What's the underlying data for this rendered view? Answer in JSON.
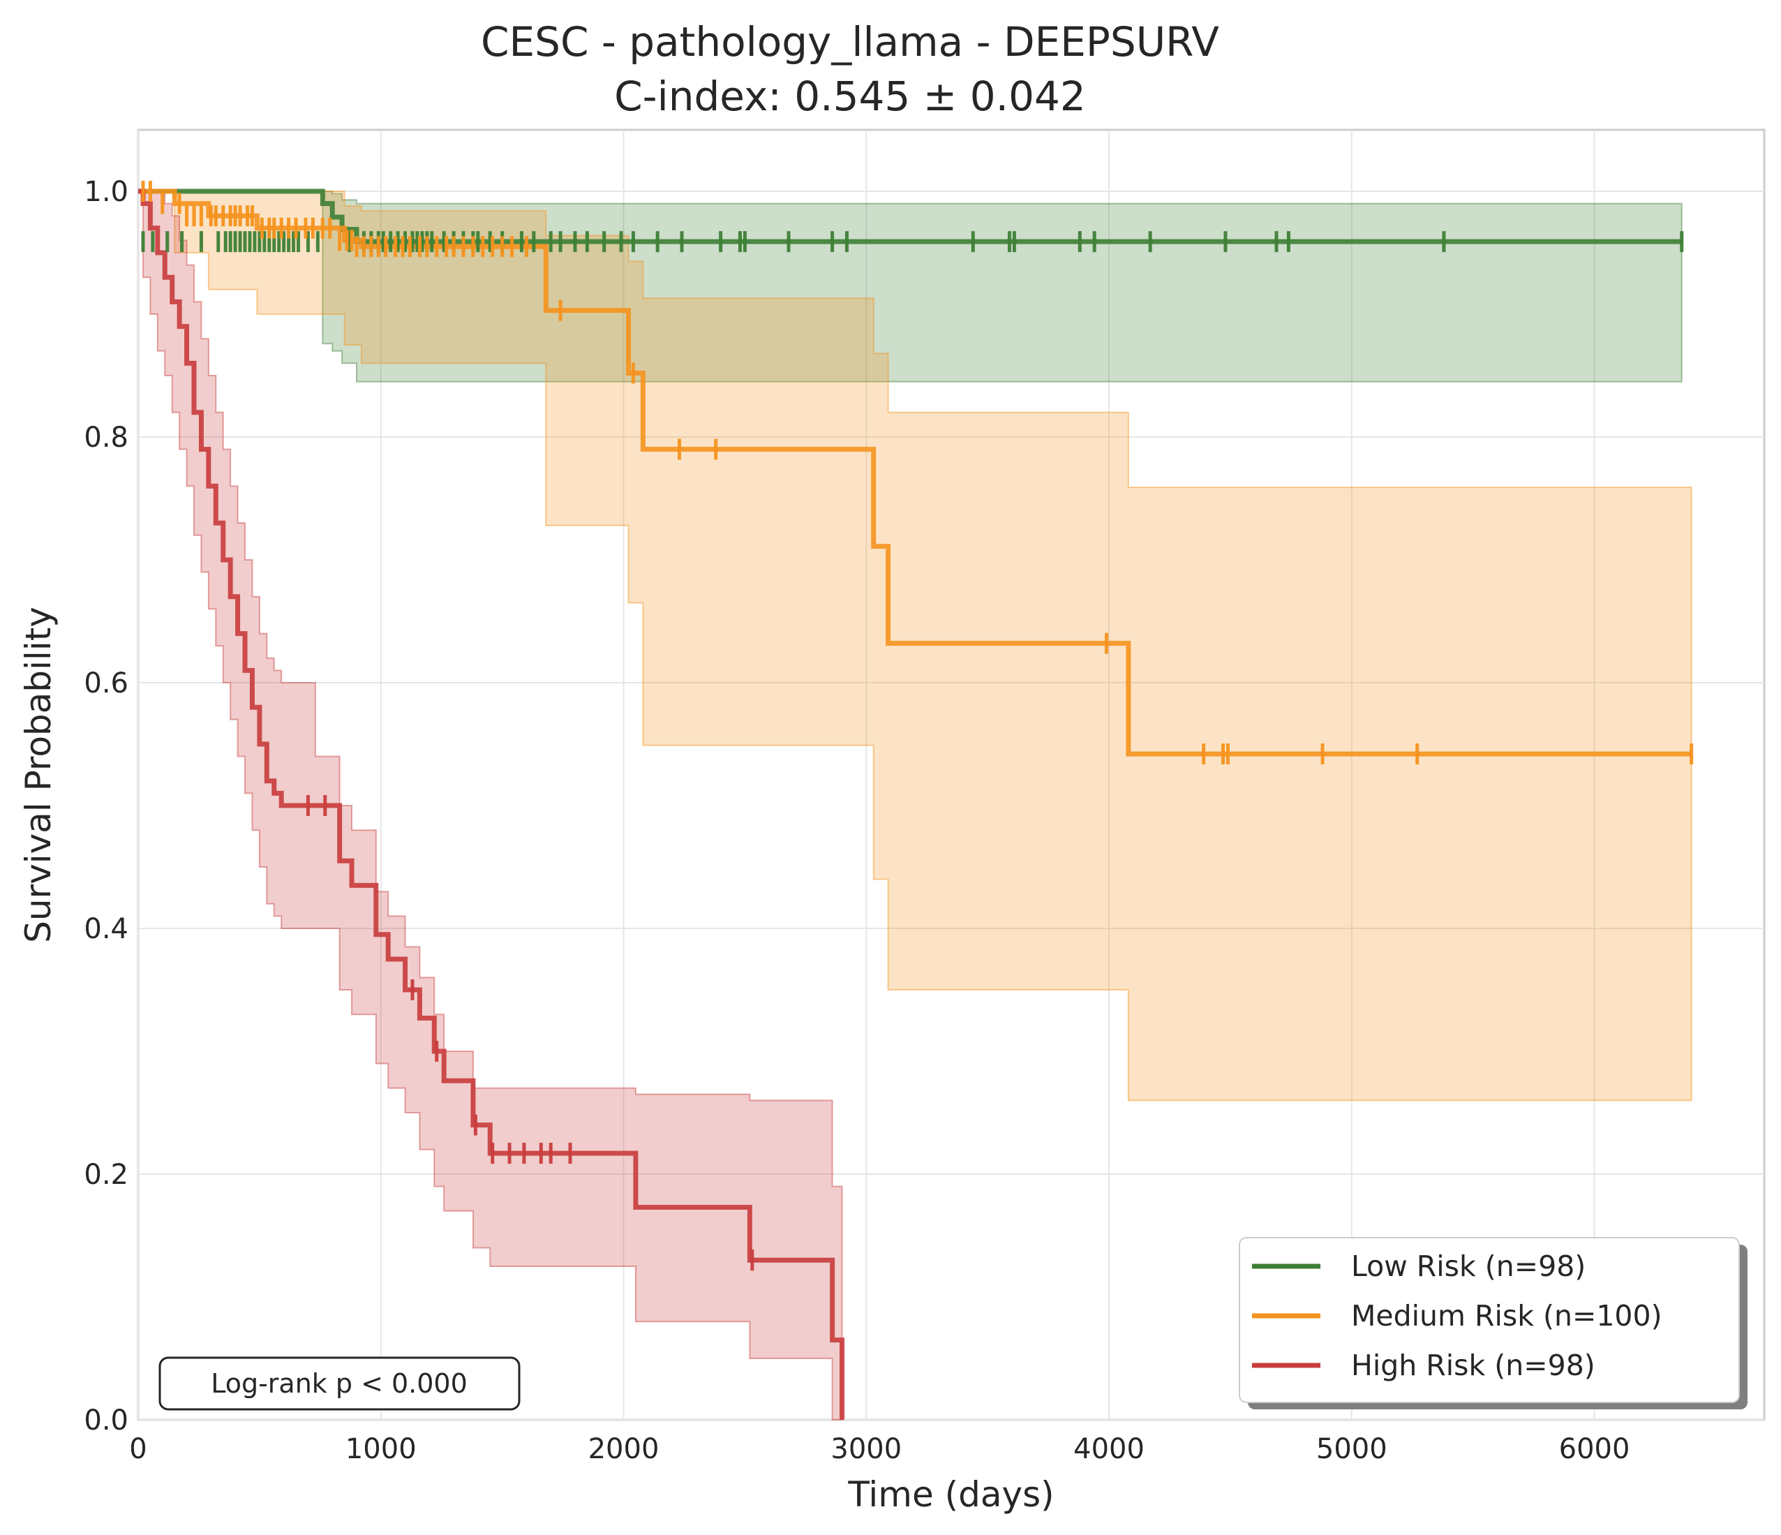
{
  "chart_data": {
    "type": "line",
    "title": "CESC - pathology_llama - DEEPSURV",
    "subtitle": "C-index: 0.545 ± 0.042",
    "xlabel": "Time (days)",
    "ylabel": "Survival Probability",
    "xlim": [
      0,
      6700
    ],
    "ylim": [
      0,
      1.05
    ],
    "x_ticks": [
      0,
      1000,
      2000,
      3000,
      4000,
      5000,
      6000
    ],
    "x_tick_labels": [
      "0",
      "1000",
      "2000",
      "3000",
      "4000",
      "5000",
      "6000"
    ],
    "y_ticks": [
      0,
      0.2,
      0.4,
      0.6,
      0.8,
      1.0
    ],
    "y_tick_labels": [
      "0.0",
      "0.2",
      "0.4",
      "0.6",
      "0.8",
      "1.0"
    ],
    "grid": true,
    "legend_position": "bottom-right",
    "annotation": "Log-rank p < 0.000",
    "series": [
      {
        "name": "Low Risk (n=98)",
        "color": "#3d7f35",
        "x": [
          0,
          760,
          800,
          840,
          900,
          6360
        ],
        "y": [
          1.0,
          0.99,
          0.979,
          0.969,
          0.959,
          0.959
        ],
        "ci_lower": [
          1.0,
          0.876,
          0.87,
          0.86,
          0.845,
          0.845
        ],
        "ci_upper": [
          1.0,
          1.0,
          0.998,
          0.993,
          0.99,
          0.99
        ],
        "censored_x": [
          20,
          60,
          120,
          180,
          260,
          330,
          360,
          380,
          400,
          420,
          440,
          460,
          480,
          500,
          520,
          540,
          560,
          580,
          600,
          620,
          640,
          660,
          700,
          740,
          870,
          930,
          960,
          990,
          1010,
          1040,
          1070,
          1100,
          1130,
          1150,
          1170,
          1190,
          1210,
          1260,
          1300,
          1340,
          1380,
          1400,
          1450,
          1500,
          1580,
          1630,
          1700,
          1740,
          1800,
          1850,
          1920,
          1990,
          2040,
          2140,
          2240,
          2400,
          2480,
          2500,
          2680,
          2860,
          2920,
          3440,
          3590,
          3610,
          3880,
          3940,
          4170,
          4480,
          4690,
          4740,
          5380,
          6360
        ],
        "censored_y": 0.959
      },
      {
        "name": "Medium Risk (n=100)",
        "color": "#f5921e",
        "x": [
          0,
          150,
          290,
          490,
          850,
          920,
          1680,
          2020,
          2080,
          3030,
          3090,
          4080,
          6400
        ],
        "y": [
          1.0,
          0.99,
          0.98,
          0.97,
          0.96,
          0.955,
          0.903,
          0.852,
          0.79,
          0.711,
          0.632,
          0.542,
          0.542
        ],
        "ci_lower": [
          1.0,
          0.95,
          0.92,
          0.9,
          0.875,
          0.86,
          0.728,
          0.665,
          0.549,
          0.44,
          0.35,
          0.26,
          0.26
        ],
        "ci_upper": [
          1.0,
          1.0,
          1.0,
          1.0,
          0.988,
          0.984,
          0.964,
          0.943,
          0.913,
          0.868,
          0.82,
          0.759,
          0.759
        ],
        "censored_x": [
          20,
          50,
          100,
          170,
          200,
          230,
          260,
          300,
          320,
          350,
          380,
          400,
          420,
          450,
          470,
          510,
          540,
          560,
          590,
          620,
          650,
          690,
          720,
          760,
          790,
          830,
          860,
          880,
          900,
          930,
          960,
          990,
          1020,
          1060,
          1090,
          1120,
          1160,
          1190,
          1230,
          1270,
          1300,
          1340,
          1380,
          1420,
          1460,
          1500,
          1540,
          1600,
          1740,
          2040,
          2230,
          2380,
          3990,
          4390,
          4470,
          4490,
          4880,
          5270,
          6400
        ],
        "censored_y": [
          1.0,
          1.0,
          0.99,
          0.99,
          0.98,
          0.98,
          0.98,
          0.98,
          0.98,
          0.98,
          0.98,
          0.98,
          0.98,
          0.98,
          0.98,
          0.97,
          0.97,
          0.97,
          0.97,
          0.97,
          0.97,
          0.97,
          0.97,
          0.97,
          0.97,
          0.96,
          0.96,
          0.96,
          0.955,
          0.955,
          0.955,
          0.955,
          0.955,
          0.955,
          0.955,
          0.955,
          0.955,
          0.955,
          0.955,
          0.955,
          0.955,
          0.955,
          0.955,
          0.955,
          0.955,
          0.955,
          0.955,
          0.955,
          0.903,
          0.852,
          0.79,
          0.79,
          0.632,
          0.542,
          0.542,
          0.542,
          0.542,
          0.542,
          0.542
        ]
      },
      {
        "name": "High Risk (n=98)",
        "color": "#c93c3c",
        "x": [
          0,
          20,
          50,
          80,
          110,
          140,
          170,
          200,
          230,
          260,
          290,
          320,
          350,
          380,
          410,
          440,
          470,
          500,
          530,
          560,
          590,
          620,
          650,
          730,
          830,
          880,
          980,
          1030,
          1100,
          1160,
          1220,
          1260,
          1380,
          1450,
          2050,
          2520,
          2860,
          2900
        ],
        "y": [
          1.0,
          0.99,
          0.97,
          0.95,
          0.93,
          0.91,
          0.89,
          0.86,
          0.82,
          0.79,
          0.76,
          0.73,
          0.7,
          0.67,
          0.64,
          0.61,
          0.58,
          0.55,
          0.52,
          0.51,
          0.5,
          0.5,
          0.5,
          0.5,
          0.455,
          0.435,
          0.395,
          0.375,
          0.35,
          0.327,
          0.3,
          0.276,
          0.24,
          0.217,
          0.173,
          0.13,
          0.065,
          0.0
        ],
        "ci_lower": [
          1.0,
          0.93,
          0.9,
          0.87,
          0.85,
          0.82,
          0.79,
          0.76,
          0.72,
          0.69,
          0.66,
          0.63,
          0.6,
          0.57,
          0.54,
          0.51,
          0.48,
          0.45,
          0.42,
          0.41,
          0.4,
          0.4,
          0.4,
          0.4,
          0.35,
          0.33,
          0.29,
          0.27,
          0.25,
          0.22,
          0.19,
          0.17,
          0.14,
          0.125,
          0.08,
          0.05,
          0.0,
          0.0
        ],
        "ci_upper": [
          1.0,
          1.0,
          1.0,
          1.0,
          0.99,
          0.98,
          0.96,
          0.94,
          0.91,
          0.88,
          0.85,
          0.82,
          0.79,
          0.76,
          0.73,
          0.7,
          0.67,
          0.64,
          0.62,
          0.61,
          0.6,
          0.6,
          0.6,
          0.54,
          0.5,
          0.48,
          0.43,
          0.41,
          0.385,
          0.36,
          0.33,
          0.3,
          0.27,
          0.27,
          0.265,
          0.26,
          0.19,
          0.0
        ],
        "censored_x": [
          700,
          770,
          1130,
          1230,
          1390,
          1460,
          1530,
          1590,
          1660,
          1700,
          1780,
          2530
        ],
        "censored_y": [
          0.5,
          0.5,
          0.35,
          0.3,
          0.24,
          0.217,
          0.217,
          0.217,
          0.217,
          0.217,
          0.217,
          0.13
        ]
      }
    ]
  }
}
